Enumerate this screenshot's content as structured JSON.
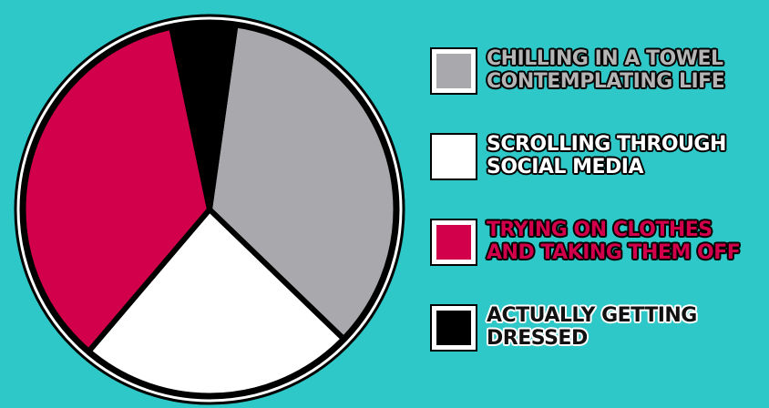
{
  "chart_data": {
    "type": "pie",
    "title": "",
    "series": [
      {
        "slices": [
          {
            "label": "CHILLING IN A TOWEL CONTEMPLATING LIFE",
            "lines": [
              "CHILLING IN A TOWEL",
              "CONTEMPLATING LIFE"
            ],
            "value": 35.0,
            "color": "#a9a9ad"
          },
          {
            "label": "SCROLLING THROUGH SOCIAL MEDIA",
            "lines": [
              "SCROLLING THROUGH",
              "SOCIAL MEDIA"
            ],
            "value": 24.0,
            "color": "#ffffff"
          },
          {
            "label": "TRYING ON CLOTHES AND TAKING THEM OFF",
            "lines": [
              "TRYING ON CLOTHES",
              "AND TAKING THEM OFF"
            ],
            "value": 35.5,
            "color": "#d2004b"
          },
          {
            "label": "ACTUALLY GETTING DRESSED",
            "lines": [
              "ACTUALLY GETTING",
              "DRESSED"
            ],
            "value": 5.5,
            "color": "#000000"
          }
        ]
      }
    ],
    "legend_position": "right",
    "grid": false
  },
  "style": {
    "background": "#2ec8c8",
    "outline": "#000000"
  }
}
